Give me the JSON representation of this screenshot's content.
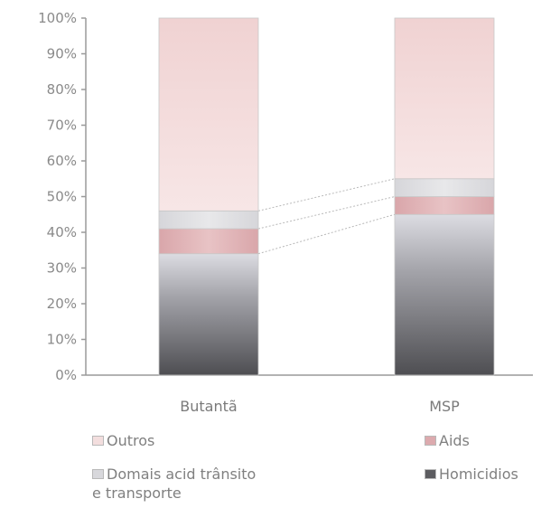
{
  "chart_data": {
    "type": "bar",
    "stacked": true,
    "categories": [
      "Butantã",
      "MSP"
    ],
    "series": [
      {
        "name": "Homicidios",
        "values": [
          34,
          45
        ],
        "color": "#6b6b70"
      },
      {
        "name": "Aids",
        "values": [
          7,
          5
        ],
        "color": "#dcaaae"
      },
      {
        "name": "Domais acid trânsito\ne transporte",
        "values": [
          5,
          5
        ],
        "color": "#d8d8dc"
      },
      {
        "name": "Outros",
        "values": [
          54,
          45
        ],
        "color": "#f3d9d9"
      }
    ],
    "y_ticks": [
      "0%",
      "10%",
      "20%",
      "30%",
      "40%",
      "50%",
      "60%",
      "70%",
      "80%",
      "90%",
      "100%"
    ],
    "ylim": [
      0,
      100
    ],
    "title": "",
    "xlabel": "",
    "ylabel": "",
    "grid": false,
    "legend_position": "bottom"
  },
  "legend": {
    "outros": "Outros",
    "aids": "Aids",
    "demais": "Domais acid trânsito\ne transporte",
    "homicidios": "Homicidios"
  }
}
